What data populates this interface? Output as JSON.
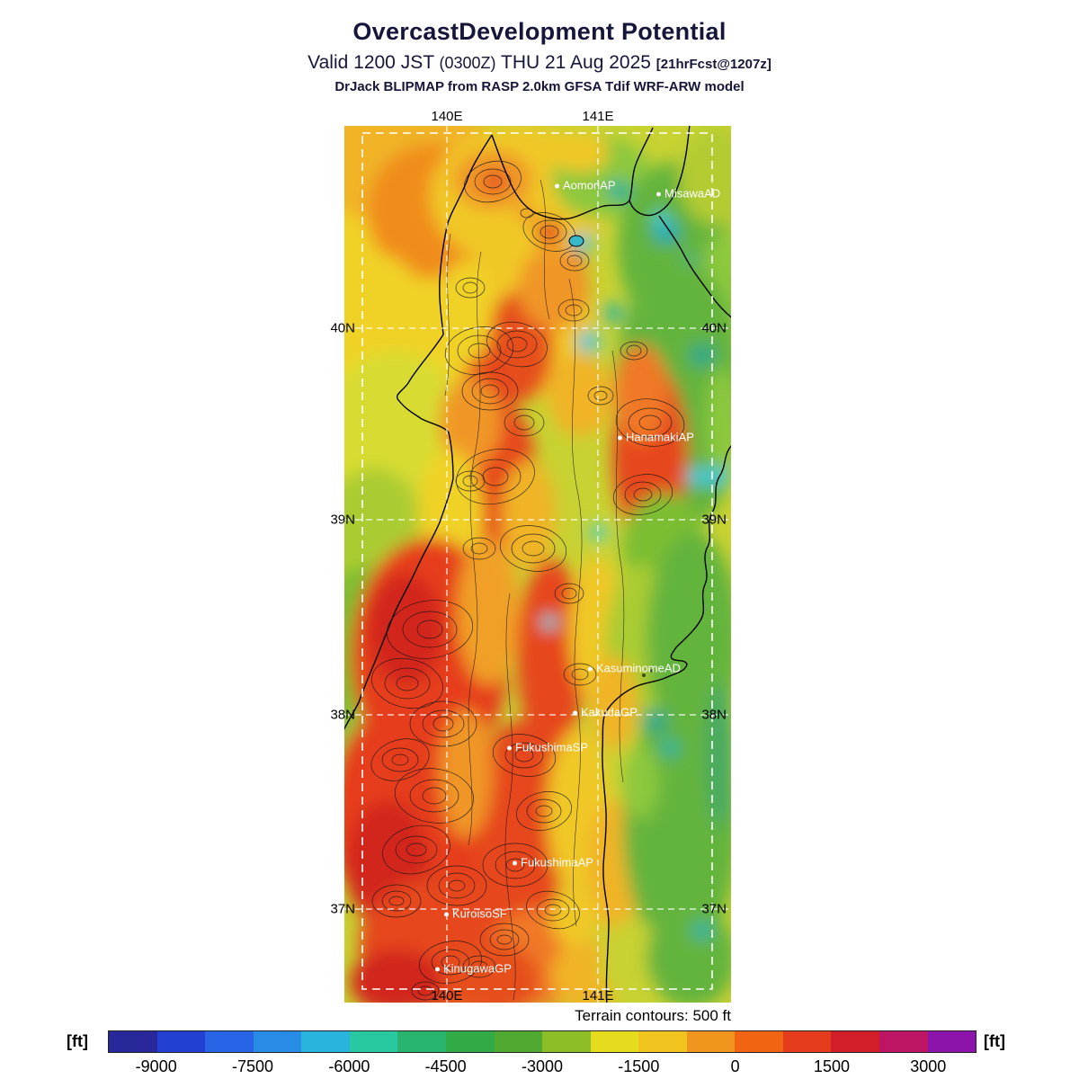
{
  "header": {
    "title": "OvercastDevelopment Potential",
    "valid_prefix": "Valid 1200 JST",
    "valid_zulu": "(0300Z)",
    "valid_date": "THU 21 Aug 2025",
    "fcst_tag": "[21hrFcst@1207z]",
    "model_line": "DrJack BLIPMAP from RASP 2.0km GFSA Tdif WRF-ARW model"
  },
  "map": {
    "lon_labels": [
      "140E",
      "141E"
    ],
    "lat_labels": [
      "40N",
      "39N",
      "38N",
      "37N"
    ],
    "stations": [
      {
        "name": "AomoriAP"
      },
      {
        "name": "MisawaAD"
      },
      {
        "name": "HanamakiAP"
      },
      {
        "name": "KasuminomeAD"
      },
      {
        "name": "KakudaGP"
      },
      {
        "name": "FukushimaSP"
      },
      {
        "name": "FukushimaAP"
      },
      {
        "name": "KuroisoSF"
      },
      {
        "name": "KinugawaGP"
      }
    ]
  },
  "footer": {
    "terrain_note": "Terrain contours: 500 ft"
  },
  "colorbar": {
    "unit": "[ft]",
    "ticks": [
      "-9000",
      "-7500",
      "-6000",
      "-4500",
      "-3000",
      "-1500",
      "0",
      "1500",
      "3000"
    ],
    "range": [
      -9750,
      3750
    ],
    "segments": [
      "#28289b",
      "#2241d2",
      "#2864e6",
      "#288ce6",
      "#28b4dc",
      "#28c8a0",
      "#28b46e",
      "#32aa46",
      "#50aa32",
      "#8cbe28",
      "#e6dc1e",
      "#f0c31e",
      "#f0961e",
      "#f06414",
      "#e63c1e",
      "#d21e28",
      "#be1464",
      "#8c14aa"
    ]
  }
}
